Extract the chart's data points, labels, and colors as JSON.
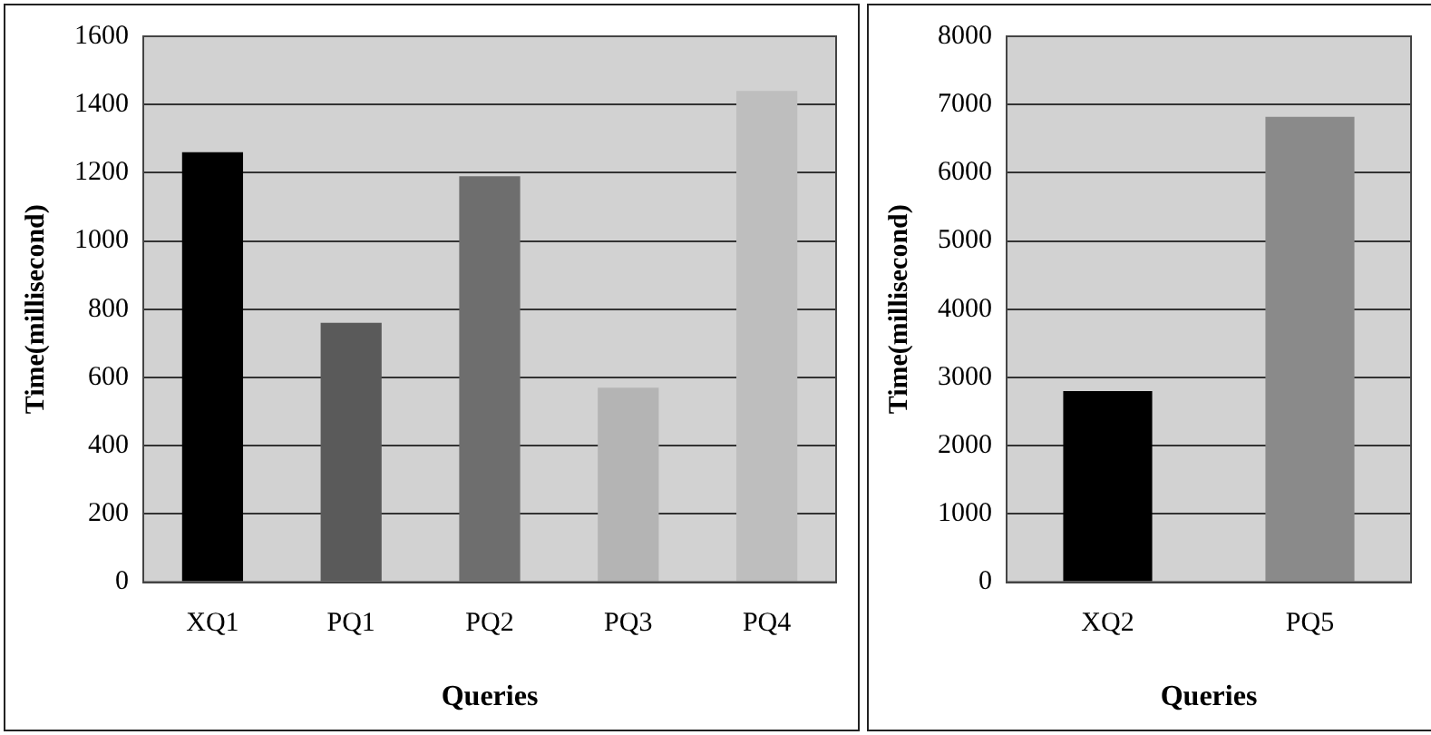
{
  "chart_data": [
    {
      "type": "bar",
      "xlabel": "Queries",
      "ylabel": "Time(millisecond)",
      "categories": [
        "XQ1",
        "PQ1",
        "PQ2",
        "PQ3",
        "PQ4"
      ],
      "values": [
        1260,
        760,
        1190,
        570,
        1440
      ],
      "colors": [
        "#000000",
        "#5a5a5a",
        "#6e6e6e",
        "#b4b4b4",
        "#bebebe"
      ],
      "ylim": [
        0,
        1600
      ],
      "yticks": [
        0,
        200,
        400,
        600,
        800,
        1000,
        1200,
        1400,
        1600
      ],
      "grid": "y"
    },
    {
      "type": "bar",
      "xlabel": "Queries",
      "ylabel": "Time(millisecond)",
      "categories": [
        "XQ2",
        "PQ5"
      ],
      "values": [
        2800,
        6820
      ],
      "colors": [
        "#000000",
        "#8a8a8a"
      ],
      "ylim": [
        0,
        8000
      ],
      "yticks": [
        0,
        1000,
        2000,
        3000,
        4000,
        5000,
        6000,
        7000,
        8000
      ],
      "grid": "y"
    }
  ]
}
